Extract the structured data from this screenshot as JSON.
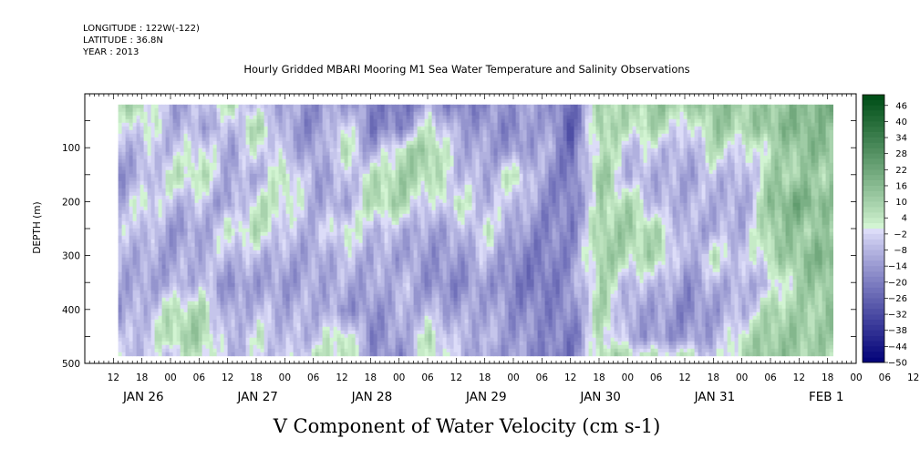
{
  "header": {
    "longitude": "LONGITUDE : 122W(-122)",
    "latitude": "LATITUDE : 36.8N",
    "year": "YEAR : 2013"
  },
  "chart_data": {
    "type": "heatmap",
    "title": "Hourly Gridded MBARI Mooring M1 Sea Water Temperature and Salinity Observations",
    "subtitle": "V Component of Water Velocity (cm s-1)",
    "ylabel": "DEPTH (m)",
    "xlabel": "",
    "y_reversed": true,
    "ylim": [
      500,
      0
    ],
    "y_ticks": [
      100,
      200,
      300,
      400,
      500
    ],
    "x_range_hours": [
      6,
      168
    ],
    "x_hour_ticks": [
      "12",
      "18",
      "00",
      "06",
      "12",
      "18",
      "00",
      "06",
      "12",
      "18",
      "00",
      "06",
      "12",
      "18",
      "00",
      "06",
      "12",
      "18",
      "00",
      "06",
      "12",
      "18",
      "00",
      "06",
      "12",
      "18",
      "00",
      "06",
      "12",
      "18"
    ],
    "x_day_labels": [
      "JAN 26",
      "JAN 27",
      "JAN 28",
      "JAN 29",
      "JAN 30",
      "JAN 31",
      "FEB  1"
    ],
    "data_extent": {
      "start_hour": 13,
      "end_hour": 163,
      "top_depth": 20,
      "bottom_depth": 486
    },
    "colorbar": {
      "min": -50,
      "max": 50,
      "step": 2,
      "labels": [
        "46",
        "40",
        "34",
        "28",
        "22",
        "16",
        "10",
        "4",
        "-2",
        "-8",
        "-14",
        "-20",
        "-26",
        "-32",
        "-38",
        "-44",
        "-50"
      ],
      "neg_light": "#dcdcf8",
      "neg_dark": "#05057a",
      "pos_light": "#d2f4d2",
      "pos_dark": "#004f18"
    },
    "column_profiles": {
      "description_values": "V velocity (cm s-1) by time (hours from JAN 25 00:00) and depth (m); white gaps below bottom",
      "depths": [
        20,
        60,
        100,
        150,
        200,
        250,
        300,
        350,
        400,
        450,
        486
      ],
      "times": [
        13,
        18,
        24,
        30,
        36,
        42,
        48,
        54,
        60,
        66,
        72,
        78,
        84,
        90,
        96,
        102,
        108,
        114,
        120,
        126,
        132,
        138,
        144,
        150,
        156,
        163
      ],
      "values": [
        [
          8,
          -6,
          -10,
          -14,
          -12,
          -6,
          -8,
          -10,
          -12,
          -8,
          -6
        ],
        [
          6,
          2,
          -6,
          -10,
          4,
          -4,
          -10,
          -12,
          -8,
          -4,
          -6
        ],
        [
          -12,
          -8,
          -6,
          4,
          -8,
          -14,
          -12,
          -10,
          6,
          8,
          -4
        ],
        [
          -8,
          -10,
          2,
          6,
          -6,
          -12,
          -8,
          -6,
          8,
          10,
          6
        ],
        [
          4,
          -8,
          -12,
          -10,
          -14,
          2,
          -6,
          -16,
          -12,
          -10,
          -8
        ],
        [
          -6,
          8,
          2,
          -10,
          4,
          6,
          -8,
          -12,
          -6,
          2,
          -4
        ],
        [
          -10,
          -12,
          -8,
          6,
          4,
          -6,
          -10,
          -14,
          -10,
          -8,
          -6
        ],
        [
          -16,
          -18,
          -14,
          -12,
          -10,
          -8,
          -12,
          -10,
          -8,
          -6,
          4
        ],
        [
          -10,
          2,
          6,
          -8,
          -12,
          4,
          -6,
          -10,
          -14,
          8,
          6
        ],
        [
          -18,
          -20,
          -14,
          4,
          8,
          -6,
          -10,
          -12,
          -16,
          -18,
          -14
        ],
        [
          -22,
          -18,
          6,
          10,
          8,
          -8,
          -12,
          -6,
          -10,
          -12,
          -18
        ],
        [
          -10,
          4,
          12,
          8,
          -6,
          -12,
          -14,
          -16,
          -8,
          6,
          4
        ],
        [
          -20,
          -12,
          -8,
          -6,
          4,
          -10,
          -14,
          -18,
          -12,
          -8,
          -6
        ],
        [
          -16,
          -14,
          -12,
          -10,
          -8,
          2,
          -6,
          -12,
          -10,
          -8,
          -14
        ],
        [
          -14,
          -18,
          -16,
          6,
          -4,
          -12,
          -18,
          -20,
          -16,
          -14,
          -12
        ],
        [
          -12,
          -10,
          -8,
          -14,
          -16,
          -18,
          -20,
          -22,
          -18,
          -16,
          -20
        ],
        [
          -26,
          -28,
          -24,
          -22,
          -20,
          -18,
          -16,
          -14,
          -18,
          -22,
          -20
        ],
        [
          10,
          12,
          8,
          14,
          6,
          10,
          12,
          8,
          10,
          6,
          8
        ],
        [
          6,
          4,
          -6,
          -10,
          8,
          10,
          6,
          -8,
          -12,
          -10,
          8
        ],
        [
          12,
          8,
          -4,
          -8,
          -10,
          6,
          8,
          -6,
          -12,
          -14,
          4
        ],
        [
          8,
          -6,
          -10,
          -12,
          -8,
          -10,
          -12,
          -16,
          -18,
          -14,
          6
        ],
        [
          14,
          12,
          6,
          -6,
          -8,
          -10,
          4,
          -8,
          -12,
          -10,
          -6
        ],
        [
          10,
          8,
          -4,
          -10,
          -12,
          -8,
          -6,
          -10,
          -8,
          6,
          8
        ],
        [
          12,
          14,
          6,
          10,
          16,
          12,
          8,
          -6,
          10,
          12,
          14
        ],
        [
          16,
          18,
          14,
          10,
          20,
          12,
          14,
          10,
          8,
          12,
          10
        ],
        [
          18,
          12,
          16,
          10,
          14,
          8,
          20,
          14,
          12,
          10,
          8
        ]
      ]
    }
  }
}
